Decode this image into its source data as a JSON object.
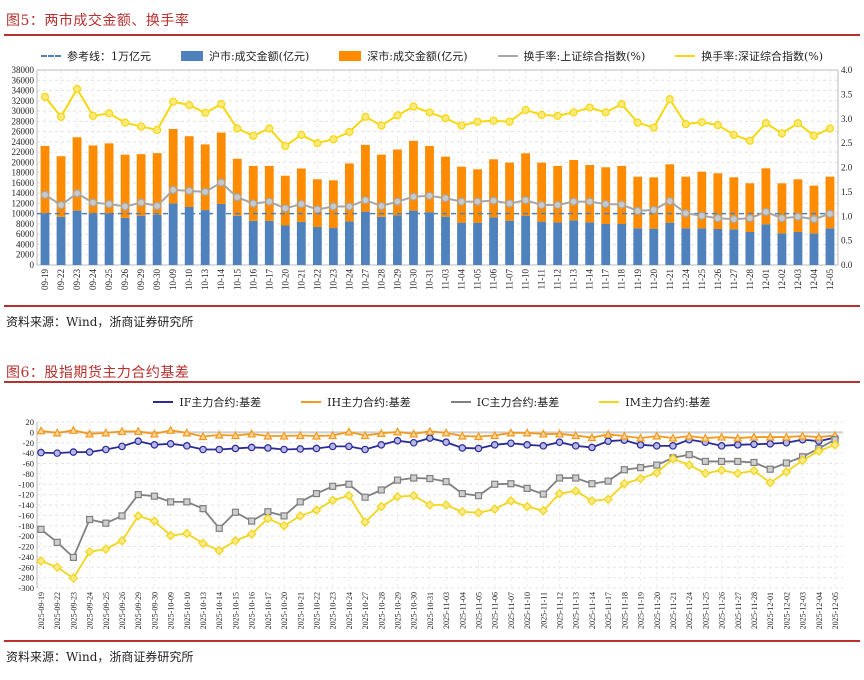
{
  "figure5": {
    "title": "图5：两市成交金额、换手率",
    "source": "资料来源：Wind，浙商证券研究所",
    "chart_data": {
      "type": "bar",
      "stacked": true,
      "categories": [
        "09-19",
        "09-22",
        "09-23",
        "09-24",
        "09-25",
        "09-26",
        "09-29",
        "09-30",
        "10-09",
        "10-10",
        "10-13",
        "10-14",
        "10-15",
        "10-16",
        "10-17",
        "10-20",
        "10-21",
        "10-22",
        "10-23",
        "10-24",
        "10-27",
        "10-28",
        "10-29",
        "10-30",
        "10-31",
        "11-03",
        "11-04",
        "11-05",
        "11-06",
        "11-07",
        "11-10",
        "11-11",
        "11-12",
        "11-13",
        "11-14",
        "11-17",
        "11-18",
        "11-19",
        "11-20",
        "11-21",
        "11-24",
        "11-25",
        "11-26",
        "11-27",
        "11-28",
        "12-01",
        "12-02",
        "12-03",
        "12-04",
        "12-05"
      ],
      "y_left": {
        "range": [
          0,
          38000
        ],
        "ticks": [
          0,
          2000,
          4000,
          6000,
          8000,
          10000,
          12000,
          14000,
          16000,
          18000,
          20000,
          22000,
          24000,
          26000,
          28000,
          30000,
          32000,
          34000,
          36000,
          38000
        ]
      },
      "y_right": {
        "range": [
          0,
          4.0
        ],
        "ticks": [
          "0.0",
          "0.5",
          "1.0",
          "1.5",
          "2.0",
          "2.5",
          "3.0",
          "3.5",
          "4.0"
        ]
      },
      "grid": true,
      "legend_position": "top",
      "reference_line": {
        "name": "参考线：1万亿元",
        "value": 10000,
        "color": "#4f81bd"
      },
      "series": [
        {
          "name": "沪市:成交金额(亿元)",
          "axis": "left",
          "kind": "bar",
          "color": "#4f81bd",
          "values": [
            10100,
            9400,
            10600,
            10100,
            10100,
            9200,
            9600,
            9800,
            12000,
            11300,
            10700,
            11900,
            9600,
            8600,
            8600,
            7700,
            8400,
            7400,
            7200,
            8500,
            10400,
            9400,
            9700,
            10600,
            10300,
            9420,
            8250,
            8250,
            9290,
            8640,
            9550,
            8450,
            8310,
            8700,
            8310,
            7990,
            7990,
            7150,
            7080,
            8250,
            7150,
            7150,
            7020,
            6950,
            6430,
            7930,
            6170,
            6430,
            6170,
            7150
          ]
        },
        {
          "name": "深市:成交金额(亿元)",
          "axis": "left",
          "kind": "bar",
          "color": "#ff8c00",
          "values": [
            13100,
            11800,
            14300,
            13200,
            13600,
            12300,
            12000,
            12000,
            14500,
            13800,
            12800,
            13900,
            11100,
            10700,
            10700,
            9700,
            10400,
            9300,
            9300,
            11300,
            13000,
            12100,
            12800,
            13600,
            12900,
            11690,
            10910,
            10400,
            11310,
            11300,
            12220,
            11490,
            10990,
            11760,
            11180,
            11050,
            11310,
            10060,
            10010,
            11370,
            10060,
            11040,
            10850,
            10140,
            9490,
            10910,
            9750,
            10270,
            9290,
            10060
          ]
        },
        {
          "name": "换手率:上证综合指数(%)",
          "axis": "right",
          "kind": "line",
          "color": "#a6a6a6",
          "values": [
            1.44,
            1.23,
            1.47,
            1.28,
            1.25,
            1.2,
            1.28,
            1.21,
            1.54,
            1.52,
            1.5,
            1.69,
            1.39,
            1.26,
            1.3,
            1.16,
            1.25,
            1.14,
            1.2,
            1.2,
            1.33,
            1.21,
            1.3,
            1.4,
            1.42,
            1.37,
            1.3,
            1.3,
            1.32,
            1.26,
            1.33,
            1.23,
            1.23,
            1.3,
            1.3,
            1.25,
            1.24,
            1.11,
            1.13,
            1.31,
            1.06,
            1.01,
            0.96,
            0.94,
            0.96,
            1.09,
            0.96,
            0.99,
            0.94,
            1.05
          ]
        },
        {
          "name": "换手率:深证综合指数(%)",
          "axis": "right",
          "kind": "line",
          "color": "#f5d80f",
          "values": [
            3.45,
            3.04,
            3.61,
            3.06,
            3.11,
            2.92,
            2.84,
            2.77,
            3.35,
            3.28,
            3.12,
            3.3,
            2.8,
            2.65,
            2.8,
            2.44,
            2.67,
            2.5,
            2.58,
            2.73,
            3.04,
            2.86,
            3.07,
            3.25,
            3.13,
            3.01,
            2.86,
            2.94,
            2.96,
            2.94,
            3.18,
            3.08,
            3.06,
            3.13,
            3.23,
            3.13,
            3.3,
            2.92,
            2.82,
            3.4,
            2.89,
            2.93,
            2.87,
            2.67,
            2.55,
            2.91,
            2.7,
            2.91,
            2.65,
            2.8
          ]
        }
      ]
    }
  },
  "figure6": {
    "title": "图6：股指期货主力合约基差",
    "source": "资料来源：Wind，浙商证券研究所",
    "chart_data": {
      "type": "line",
      "categories": [
        "2025-09-19",
        "2025-09-22",
        "2025-09-23",
        "2025-09-24",
        "2025-09-25",
        "2025-09-26",
        "2025-09-29",
        "2025-09-30",
        "2025-10-09",
        "2025-10-10",
        "2025-10-13",
        "2025-10-14",
        "2025-10-15",
        "2025-10-16",
        "2025-10-17",
        "2025-10-20",
        "2025-10-21",
        "2025-10-22",
        "2025-10-23",
        "2025-10-24",
        "2025-10-27",
        "2025-10-28",
        "2025-10-29",
        "2025-10-30",
        "2025-10-31",
        "2025-11-03",
        "2025-11-04",
        "2025-11-05",
        "2025-11-06",
        "2025-11-07",
        "2025-11-10",
        "2025-11-11",
        "2025-11-12",
        "2025-11-13",
        "2025-11-14",
        "2025-11-17",
        "2025-11-18",
        "2025-11-19",
        "2025-11-20",
        "2025-11-21",
        "2025-11-24",
        "2025-11-25",
        "2025-11-26",
        "2025-11-27",
        "2025-11-28",
        "2025-12-01",
        "2025-12-02",
        "2025-12-03",
        "2025-12-04",
        "2025-12-05"
      ],
      "y": {
        "range": [
          -300,
          20
        ],
        "ticks": [
          20,
          0,
          -20,
          -40,
          -60,
          -80,
          -100,
          -120,
          -140,
          -160,
          -180,
          -200,
          -220,
          -240,
          -260,
          -280,
          -300
        ]
      },
      "grid": true,
      "legend_position": "top",
      "series": [
        {
          "name": "IF主力合约:基差",
          "color": "#2b2b96",
          "marker": "circle",
          "values": [
            -39,
            -40,
            -38,
            -38,
            -33,
            -27,
            -17,
            -24,
            -22,
            -26,
            -33,
            -33,
            -31,
            -29,
            -30,
            -33,
            -32,
            -31,
            -27,
            -27,
            -33,
            -24,
            -16,
            -20,
            -11,
            -19,
            -30,
            -31,
            -24,
            -21,
            -24,
            -26,
            -19,
            -26,
            -29,
            -17,
            -15,
            -24,
            -26,
            -26,
            -14,
            -19,
            -26,
            -24,
            -23,
            -22,
            -20,
            -14,
            -17,
            -10
          ]
        },
        {
          "name": "IH主力合约:基差",
          "color": "#f39a1e",
          "marker": "triangle",
          "values": [
            3,
            -1,
            4,
            -3,
            -1,
            2,
            2,
            -3,
            4,
            -1,
            -8,
            -5,
            -6,
            -3,
            -7,
            -7,
            -6,
            -7,
            -6,
            1,
            -6,
            -2,
            1,
            -3,
            2,
            -1,
            -7,
            -8,
            -6,
            -1,
            -1,
            -3,
            -3,
            -6,
            -10,
            -4,
            -7,
            -11,
            -7,
            -11,
            -7,
            -11,
            -9,
            -11,
            -9,
            -9,
            -9,
            -7,
            -9,
            -6
          ]
        },
        {
          "name": "IC主力合约:基差",
          "color": "#808080",
          "marker": "square",
          "values": [
            -187,
            -212,
            -241,
            -168,
            -175,
            -161,
            -120,
            -123,
            -134,
            -134,
            -147,
            -185,
            -154,
            -171,
            -153,
            -161,
            -134,
            -118,
            -104,
            -100,
            -125,
            -111,
            -92,
            -88,
            -89,
            -95,
            -118,
            -122,
            -100,
            -99,
            -108,
            -119,
            -88,
            -88,
            -99,
            -94,
            -72,
            -68,
            -63,
            -49,
            -43,
            -56,
            -56,
            -56,
            -58,
            -71,
            -59,
            -47,
            -31,
            -14
          ]
        },
        {
          "name": "IM主力合约:基差",
          "color": "#f2d51c",
          "marker": "diamond",
          "values": [
            -248,
            -260,
            -281,
            -230,
            -225,
            -209,
            -161,
            -171,
            -199,
            -195,
            -214,
            -228,
            -209,
            -196,
            -166,
            -180,
            -161,
            -150,
            -131,
            -122,
            -173,
            -143,
            -124,
            -122,
            -140,
            -140,
            -153,
            -155,
            -148,
            -132,
            -143,
            -151,
            -118,
            -113,
            -132,
            -129,
            -99,
            -89,
            -78,
            -51,
            -63,
            -79,
            -73,
            -79,
            -74,
            -97,
            -76,
            -54,
            -36,
            -24
          ]
        }
      ]
    }
  }
}
